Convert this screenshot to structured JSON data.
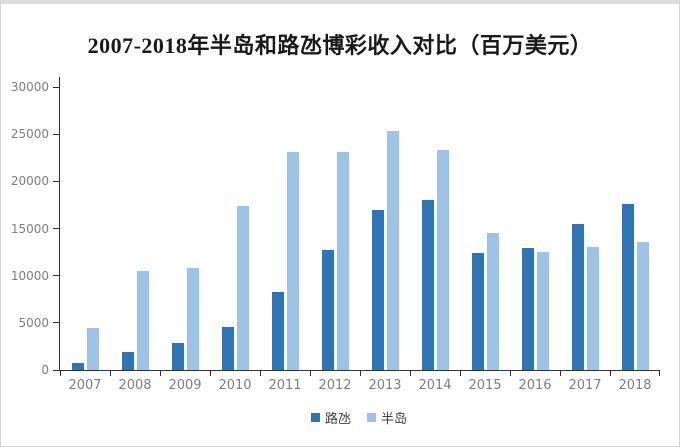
{
  "window": {
    "background": "#ffffff",
    "border_color": "#d6d6d6"
  },
  "chart_data": {
    "type": "bar",
    "title": "2007-2018年半岛和路氹博彩收入对比（百万美元）",
    "categories": [
      "2007",
      "2008",
      "2009",
      "2010",
      "2011",
      "2012",
      "2013",
      "2014",
      "2015",
      "2016",
      "2017",
      "2018"
    ],
    "series": [
      {
        "name": "路氹",
        "color": "#2E75B6",
        "values": [
          700,
          1900,
          2850,
          4600,
          8250,
          12700,
          17000,
          18000,
          12450,
          12900,
          15450,
          17650
        ]
      },
      {
        "name": "半岛",
        "color": "#9DC3E6",
        "values": [
          4500,
          10450,
          10850,
          17400,
          23100,
          23100,
          25300,
          23300,
          14550,
          12500,
          13000,
          13550
        ]
      }
    ],
    "xlabel": "",
    "ylabel": "",
    "ylim": [
      0,
      30000
    ],
    "yticks": [
      0,
      5000,
      10000,
      15000,
      20000,
      25000,
      30000
    ],
    "grid": false,
    "legend_position": "bottom",
    "axis_color": "#333333",
    "tick_label_color": "#7f7f7f",
    "legend_label_color": "#404040"
  }
}
